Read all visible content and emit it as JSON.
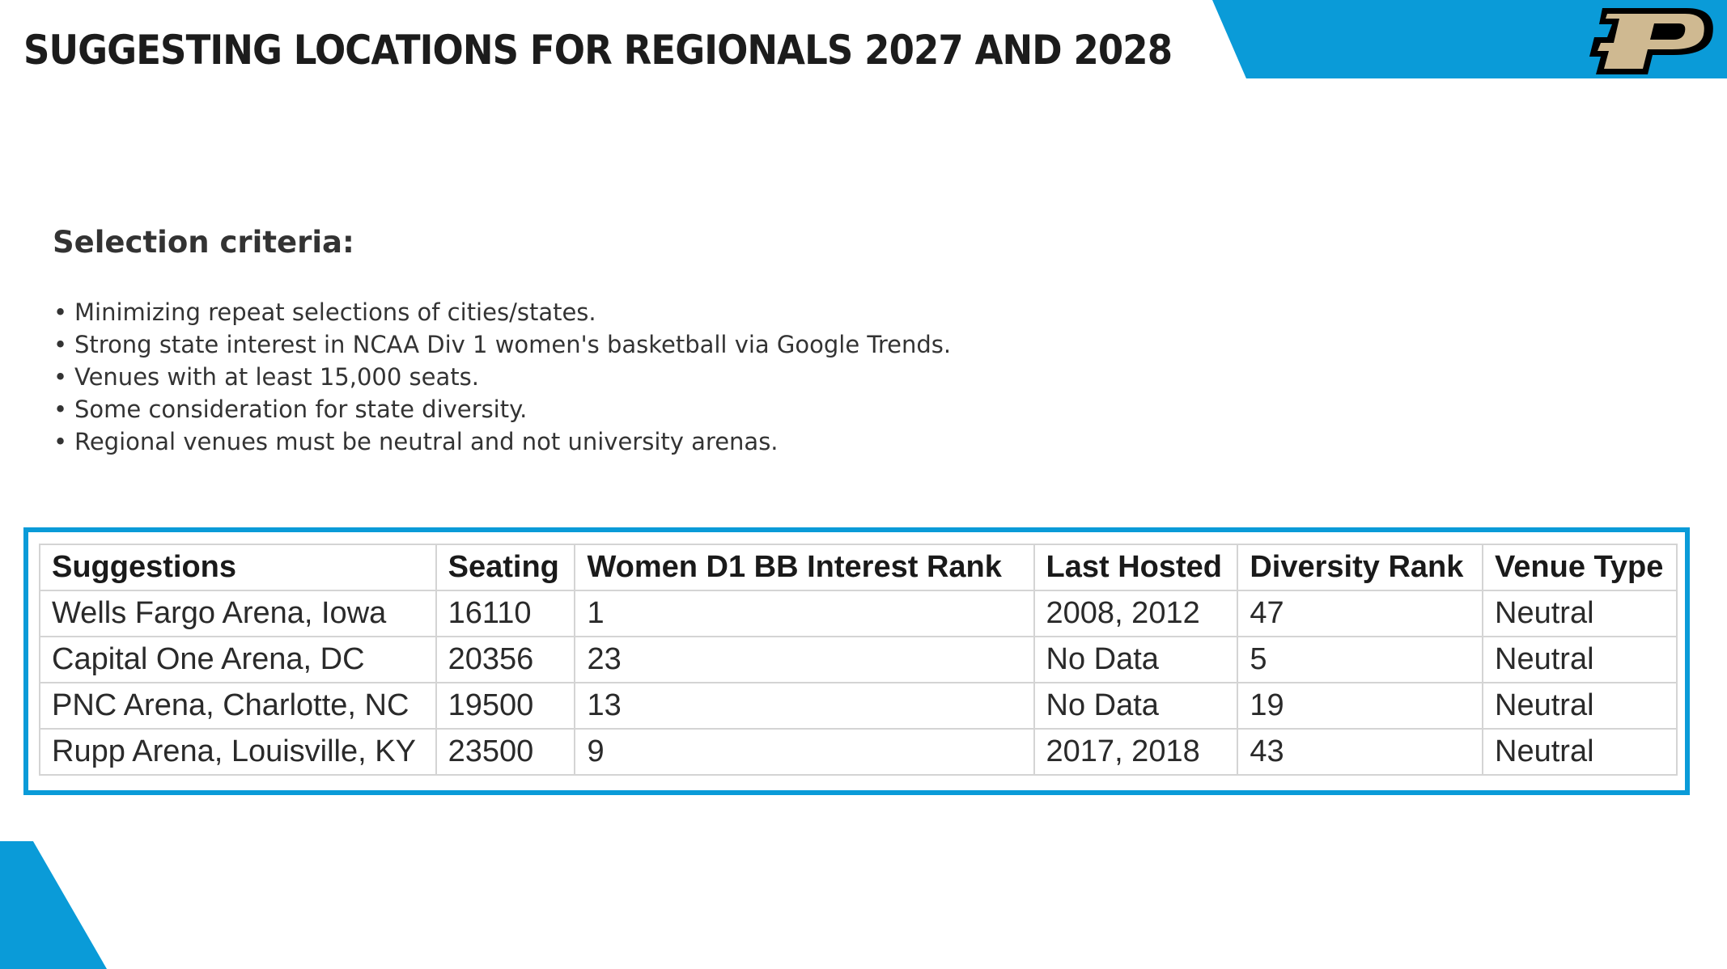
{
  "title": "SUGGESTING LOCATIONS FOR REGIONALS 2027 AND 2028",
  "logo_icon": "purdue-p-logo",
  "colors": {
    "accent": "#0a9bd8",
    "logo_gold": "#cfb991",
    "logo_black": "#000000"
  },
  "criteria": {
    "heading": "Selection criteria:",
    "items": [
      "Minimizing repeat selections of cities/states.",
      "Strong state interest in NCAA Div 1 women's basketball via Google Trends.",
      "Venues with at least 15,000 seats.",
      "Some consideration for state diversity.",
      "Regional venues must be neutral and not university arenas."
    ]
  },
  "table": {
    "headers": [
      "Suggestions",
      "Seating",
      "Women D1 BB Interest Rank",
      "Last Hosted",
      "Diversity Rank",
      "Venue Type"
    ],
    "rows": [
      [
        "Wells Fargo Arena, Iowa",
        "16110",
        "1",
        "2008, 2012",
        "47",
        "Neutral"
      ],
      [
        "Capital One Arena, DC",
        "20356",
        "23",
        "No Data",
        "5",
        "Neutral"
      ],
      [
        "PNC Arena, Charlotte, NC",
        "19500",
        "13",
        "No Data",
        "19",
        "Neutral"
      ],
      [
        "Rupp Arena, Louisville, KY",
        "23500",
        "9",
        "2017, 2018",
        "43",
        "Neutral"
      ]
    ]
  }
}
